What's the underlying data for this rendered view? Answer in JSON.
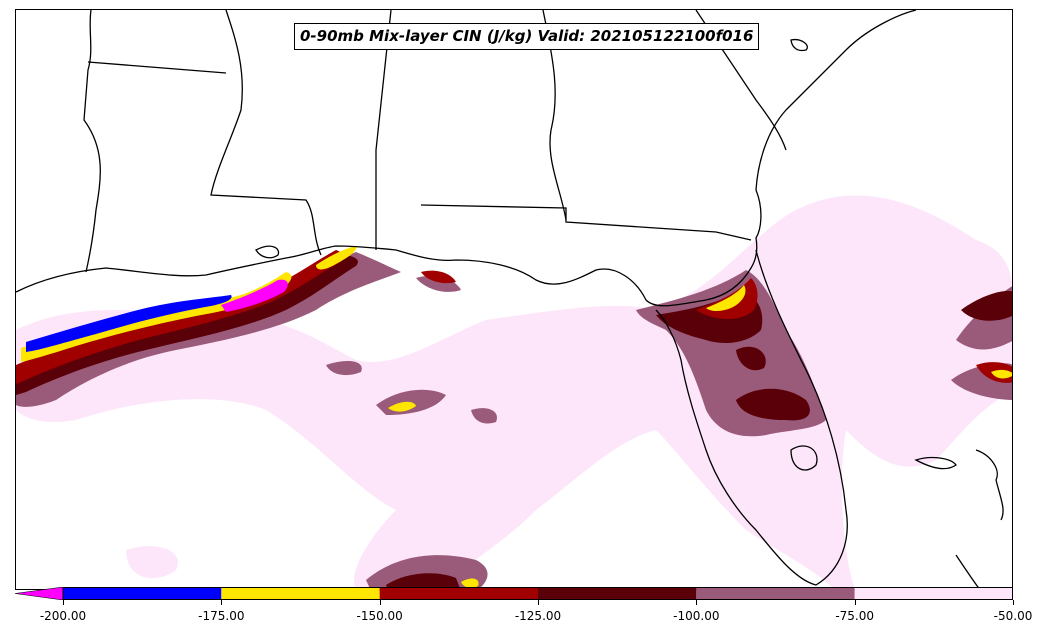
{
  "title": "0-90mb Mix-layer CIN (J/kg) Valid: 202105122100f016",
  "colorbar": {
    "extend": "min",
    "ticks": [
      "-200.00",
      "-175.00",
      "-150.00",
      "-125.00",
      "-100.00",
      "-75.00",
      "-50.00"
    ],
    "bins": [
      {
        "from": -200,
        "to": -175,
        "color": "#0000ff"
      },
      {
        "from": -175,
        "to": -150,
        "color": "#ffe600"
      },
      {
        "from": -150,
        "to": -125,
        "color": "#a00000"
      },
      {
        "from": -125,
        "to": -100,
        "color": "#5a0008"
      },
      {
        "from": -100,
        "to": -75,
        "color": "#9a5a7a"
      },
      {
        "from": -75,
        "to": -50,
        "color": "#fde6fa"
      }
    ],
    "under_color": "#ff00ff"
  },
  "colors": {
    "magenta": "#ff00ff",
    "blue": "#0000ff",
    "yellow": "#ffe600",
    "red": "#a00000",
    "darkred": "#5a0008",
    "mauve": "#9a5a7a",
    "pink": "#fde6fa",
    "border": "#000000"
  }
}
